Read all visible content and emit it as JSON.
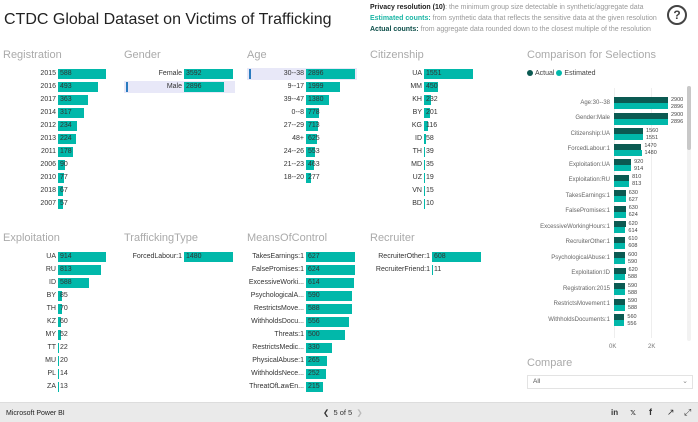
{
  "title": "CTDC Global Dataset on Victims of Trafficking",
  "info": [
    {
      "bold": "Privacy resolution (10)",
      "text": ": the minimum group size detectable in synthetic/aggregate data",
      "color": "#222"
    },
    {
      "bold": "Estimated counts:",
      "text": " from synthetic data that reflects the sensitive data at the given resolution",
      "color": "#1bb5a5"
    },
    {
      "bold": "Actual counts:",
      "text": " from aggregate data rounded down to the closest multiple of the resolution",
      "color": "#0e4f4a"
    }
  ],
  "help_icon": "question-circle-icon",
  "colors": {
    "estimated": "#01b8aa",
    "actual": "#0b5a52",
    "selected_bg": "#e8e8f8"
  },
  "panels": [
    {
      "id": "registration",
      "title": "Registration",
      "rows": [
        [
          "2015",
          588
        ],
        [
          "2016",
          493
        ],
        [
          "2017",
          363
        ],
        [
          "2014",
          317
        ],
        [
          "2012",
          234
        ],
        [
          "2013",
          224
        ],
        [
          "2011",
          178
        ],
        [
          "2006",
          90
        ],
        [
          "2010",
          77
        ],
        [
          "2018",
          67
        ],
        [
          "2007",
          57
        ]
      ]
    },
    {
      "id": "gender",
      "title": "Gender",
      "rows": [
        [
          "Female",
          3592
        ],
        [
          "Male",
          2896,
          true
        ]
      ]
    },
    {
      "id": "age",
      "title": "Age",
      "rows": [
        [
          "30--38",
          2896,
          true
        ],
        [
          "9--17",
          1999
        ],
        [
          "39--47",
          1380
        ],
        [
          "0--8",
          778
        ],
        [
          "27--29",
          713
        ],
        [
          "48+",
          625
        ],
        [
          "24--26",
          553
        ],
        [
          "21--23",
          463
        ],
        [
          "18--20",
          277
        ]
      ]
    },
    {
      "id": "citizenship",
      "title": "Citizenship",
      "rows": [
        [
          "UA",
          1551
        ],
        [
          "MM",
          450
        ],
        [
          "KH",
          232
        ],
        [
          "BY",
          201
        ],
        [
          "KG",
          116
        ],
        [
          "ID",
          58
        ],
        [
          "TH",
          39
        ],
        [
          "MD",
          35
        ],
        [
          "UZ",
          19
        ],
        [
          "VN",
          15
        ],
        [
          "BD",
          10
        ]
      ]
    },
    {
      "id": "exploitation",
      "title": "Exploitation",
      "rows": [
        [
          "UA",
          914
        ],
        [
          "RU",
          813
        ],
        [
          "ID",
          588
        ],
        [
          "BY",
          85
        ],
        [
          "TH",
          70
        ],
        [
          "KZ",
          60
        ],
        [
          "MY",
          52
        ],
        [
          "TT",
          22
        ],
        [
          "MU",
          20
        ],
        [
          "PL",
          14
        ],
        [
          "ZA",
          13
        ]
      ]
    },
    {
      "id": "traffickingtype",
      "title": "TraffickingType",
      "rows": [
        [
          "ForcedLabour:1",
          1480
        ]
      ]
    },
    {
      "id": "meansofcontrol",
      "title": "MeansOfControl",
      "rows": [
        [
          "TakesEarnings:1",
          627
        ],
        [
          "FalsePromises:1",
          624
        ],
        [
          "ExcessiveWorki...",
          614
        ],
        [
          "PsychologicalA...",
          590
        ],
        [
          "RestrictsMove...",
          588
        ],
        [
          "WithholdsDocu...",
          556
        ],
        [
          "Threats:1",
          500
        ],
        [
          "RestrictsMedic...",
          330
        ],
        [
          "PhysicalAbuse:1",
          265
        ],
        [
          "WithholdsNece...",
          252
        ],
        [
          "ThreatOfLawEn...",
          215
        ]
      ]
    },
    {
      "id": "recruiter",
      "title": "Recruiter",
      "rows": [
        [
          "RecruiterOther:1",
          608
        ],
        [
          "RecruiterFriend:1",
          11
        ]
      ]
    }
  ],
  "comparison": {
    "title": "Comparison for Selections",
    "legend": [
      "Actual",
      "Estimated"
    ],
    "chart_data": {
      "type": "bar",
      "orientation": "horizontal",
      "categories": [
        "Age:30--38",
        "Gender:Male",
        "Citizenship:UA",
        "ForcedLabour:1",
        "Exploitation:UA",
        "Exploitation:RU",
        "TakesEarnings:1",
        "FalsePromises:1",
        "ExcessiveWorkingHours:1",
        "RecruiterOther:1",
        "PsychologicalAbuse:1",
        "Exploitation:ID",
        "Registration:2015",
        "RestrictsMovement:1",
        "WithholdsDocuments:1"
      ],
      "series": [
        {
          "name": "Actual",
          "values": [
            2900,
            2900,
            1560,
            1470,
            920,
            810,
            630,
            630,
            620,
            610,
            600,
            620,
            590,
            590,
            560
          ]
        },
        {
          "name": "Estimated",
          "values": [
            2896,
            2896,
            1551,
            1480,
            914,
            813,
            627,
            624,
            614,
            608,
            590,
            588,
            588,
            588,
            556
          ]
        }
      ],
      "xticks": [
        "0K",
        "2K"
      ],
      "xlim": [
        0,
        2900
      ]
    }
  },
  "compare": {
    "title": "Compare",
    "selected": "All"
  },
  "footer": {
    "brand": "Microsoft Power BI",
    "pager": "5 of 5",
    "icons": [
      "linkedin-icon",
      "twitter-icon",
      "facebook-icon",
      "share-icon",
      "expand-icon"
    ]
  }
}
